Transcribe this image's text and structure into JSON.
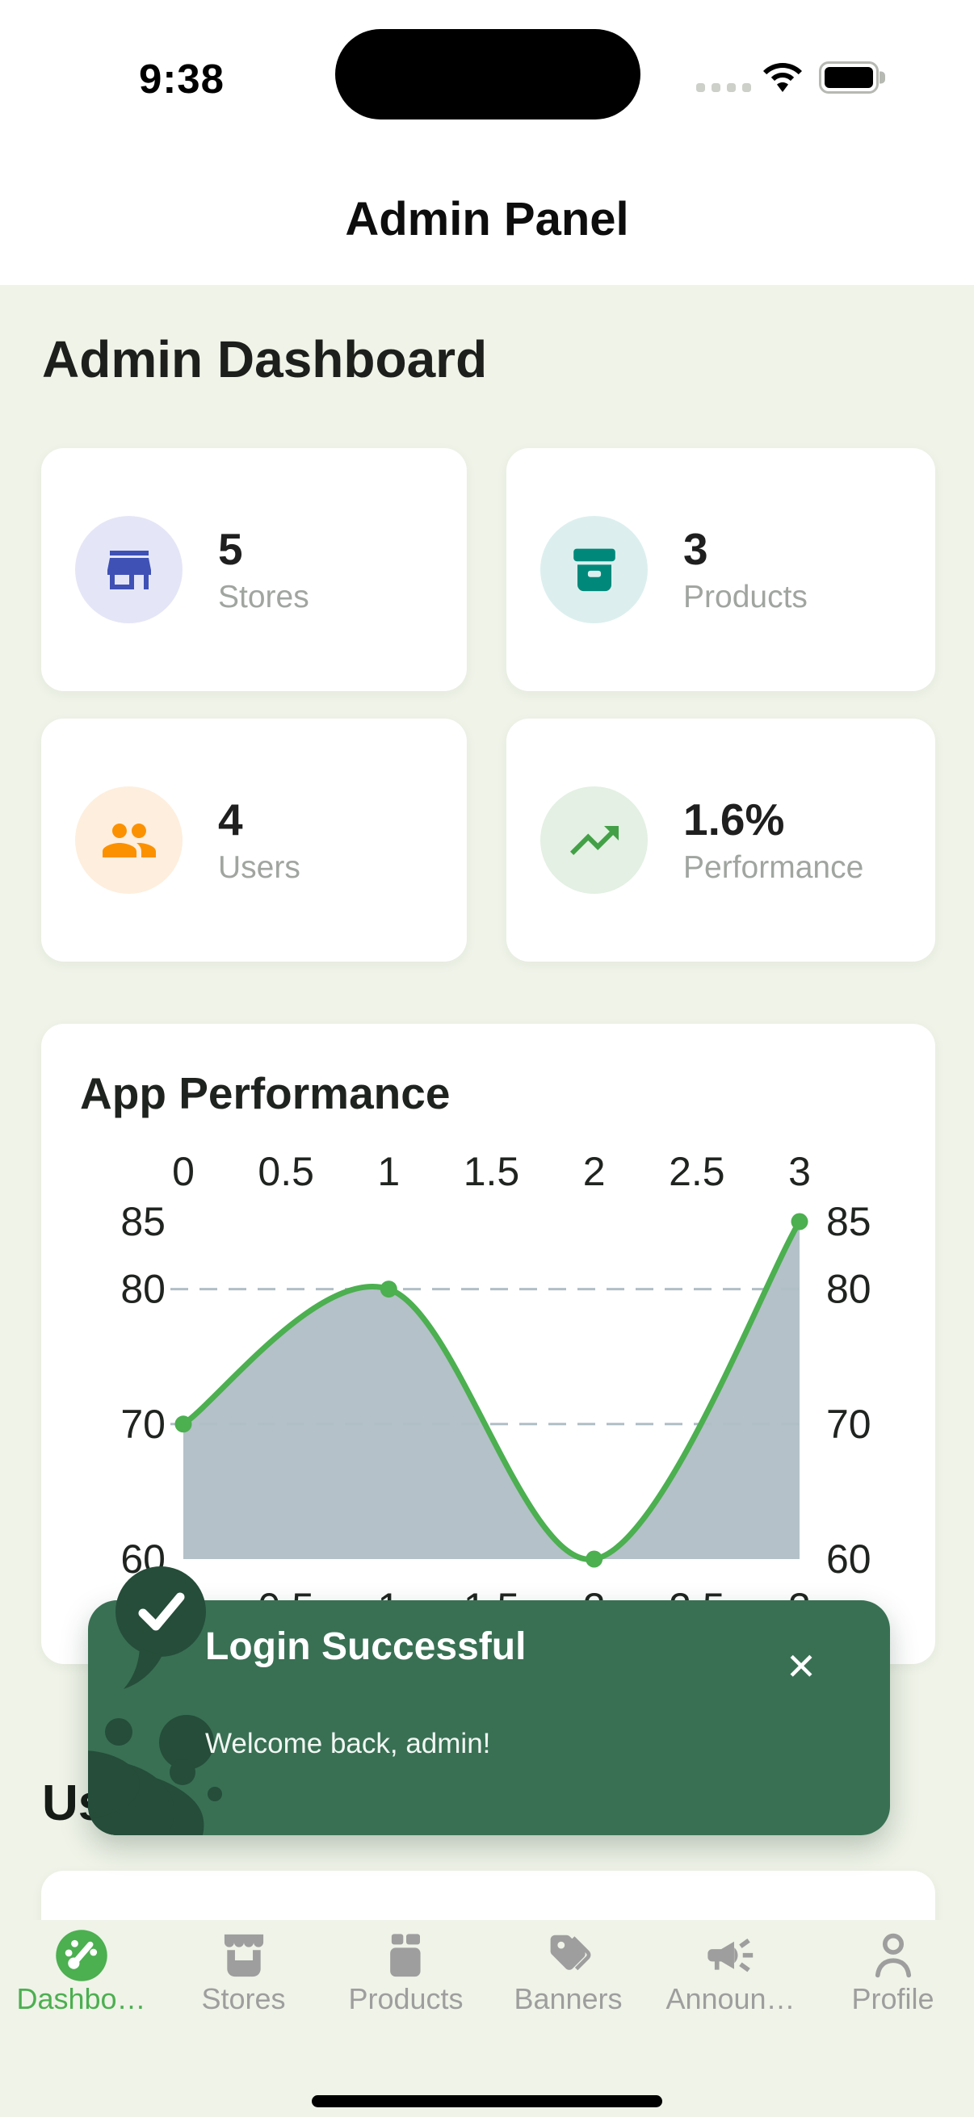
{
  "colors": {
    "bg": "#eff3e8",
    "header_bg": "#ffffff",
    "card_bg": "#ffffff",
    "accent_green": "#4caf50",
    "indigo": "#3f51b5",
    "indigo_bg": "#e4e6f7",
    "teal": "#00897b",
    "teal_bg": "#dcefee",
    "orange": "#fb9100",
    "orange_bg": "#feeedd",
    "green_icon": "#43a047",
    "green_icon_bg": "#e3f0e3",
    "chart_fill": "#b0bec5",
    "toast_bg": "#397054",
    "toast_dark": "#254d39",
    "tab_inactive": "#9e9e9e"
  },
  "status_bar": {
    "time": "9:38",
    "icons": [
      "cellular-signal-dots",
      "wifi-icon",
      "battery-icon"
    ]
  },
  "nav": {
    "title": "Admin Panel"
  },
  "page": {
    "heading": "Admin Dashboard"
  },
  "stats": [
    {
      "value": "5",
      "label": "Stores",
      "icon": "storefront-icon",
      "color": "#3f51b5",
      "bg": "#e4e6f7"
    },
    {
      "value": "3",
      "label": "Products",
      "icon": "archive-box-icon",
      "color": "#00897b",
      "bg": "#dcefee"
    },
    {
      "value": "4",
      "label": "Users",
      "icon": "people-icon",
      "color": "#fb9100",
      "bg": "#feeedd"
    },
    {
      "value": "1.6%",
      "label": "Performance",
      "icon": "trending-up-icon",
      "color": "#43a047",
      "bg": "#e3f0e3"
    }
  ],
  "chart_card": {
    "title": "App Performance"
  },
  "chart_data": {
    "type": "area",
    "title": "App Performance",
    "x": [
      0,
      1,
      2,
      3
    ],
    "series": [
      {
        "name": "performance",
        "values": [
          70,
          80,
          60,
          85
        ]
      }
    ],
    "x_ticks": [
      0,
      0.5,
      1,
      1.5,
      2,
      2.5,
      3
    ],
    "x_tick_labels": [
      "0",
      "0.5",
      "1",
      "1.5",
      "2",
      "2.5",
      "3"
    ],
    "y_ticks": [
      85,
      80,
      70,
      60
    ],
    "y_tick_labels": [
      "85",
      "80",
      "70",
      "60"
    ],
    "y_gridlines": [
      80,
      70
    ],
    "xlim": [
      0,
      3
    ],
    "ylim": [
      60,
      85
    ],
    "grid": "horizontal dashed",
    "axis_layout": "x labels on top and bottom, y labels on left and right",
    "legend": null,
    "smooth": true,
    "line_color": "#4caf50",
    "point_color": "#4caf50",
    "fill_color": "#b0bec5"
  },
  "toast": {
    "title": "Login Successful",
    "message": "Welcome back, admin!",
    "close_label": "✕"
  },
  "section": {
    "heading": "Users"
  },
  "tab_bar": {
    "items": [
      {
        "label": "Dashbo…",
        "icon": "speedometer-icon",
        "active": true
      },
      {
        "label": "Stores",
        "icon": "storefront-icon",
        "active": false
      },
      {
        "label": "Products",
        "icon": "box-icon",
        "active": false
      },
      {
        "label": "Banners",
        "icon": "tags-icon",
        "active": false
      },
      {
        "label": "Announ…",
        "icon": "megaphone-icon",
        "active": false
      },
      {
        "label": "Profile",
        "icon": "person-icon",
        "active": false
      }
    ]
  }
}
